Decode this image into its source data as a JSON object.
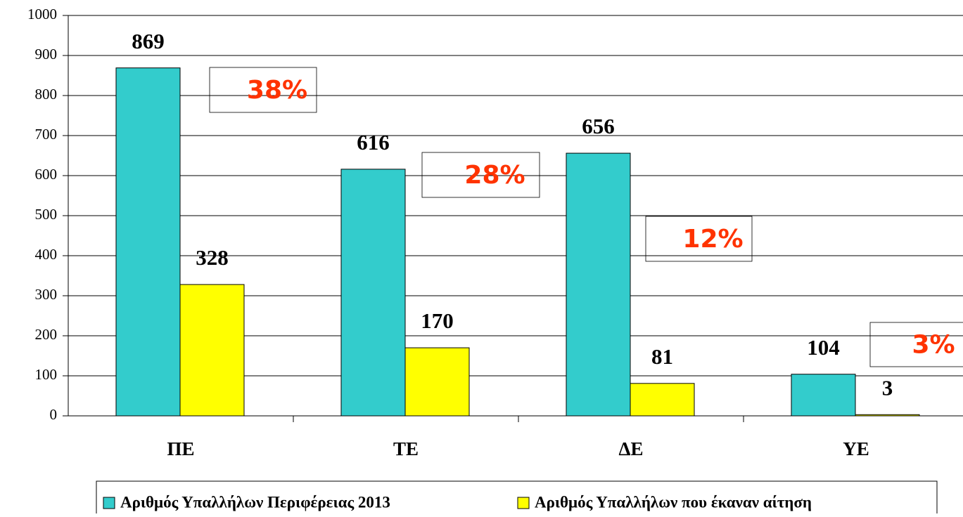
{
  "chart_data": {
    "type": "bar",
    "categories": [
      "ΠΕ",
      "ΤΕ",
      "ΔΕ",
      "ΥΕ"
    ],
    "series": [
      {
        "name": "Αριθμός Υπαλλήλων Περιφέρειας 2013",
        "color": "#33cccc",
        "values": [
          869,
          616,
          656,
          104
        ]
      },
      {
        "name": "Αριθμός Υπαλλήλων που έκαναν αίτηση",
        "color": "#ffff00",
        "values": [
          328,
          170,
          81,
          3
        ]
      }
    ],
    "annotations": [
      "38%",
      "28%",
      "12%",
      "3%"
    ],
    "ylim": [
      0,
      1000
    ],
    "yticks": [
      0,
      100,
      200,
      300,
      400,
      500,
      600,
      700,
      800,
      900,
      1000
    ],
    "grid": true,
    "legend": "bottom"
  }
}
